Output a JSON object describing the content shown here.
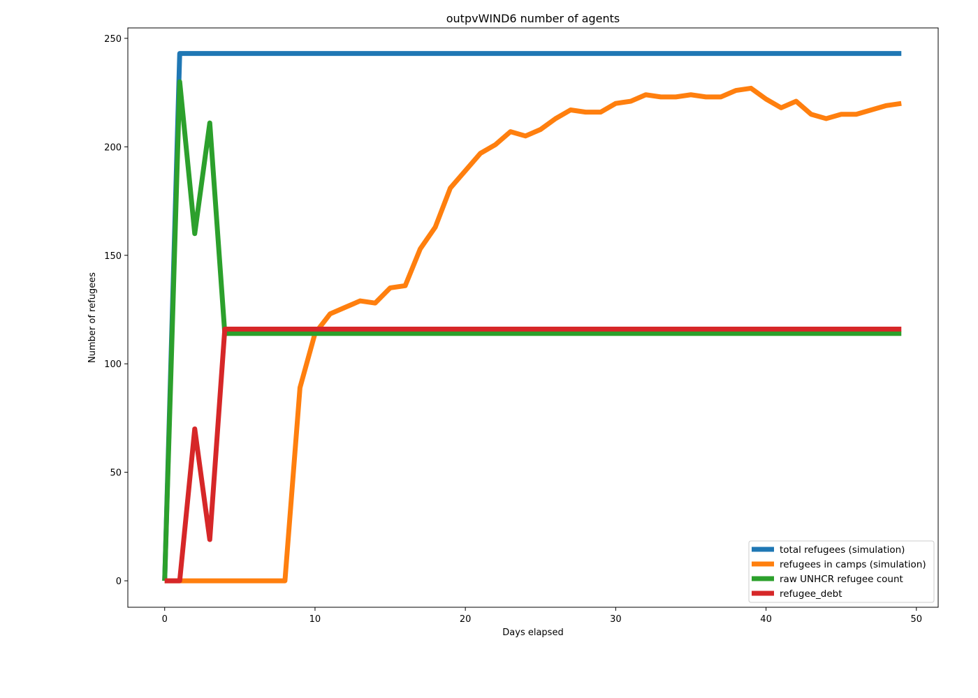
{
  "chart_data": {
    "type": "line",
    "title": "outpvWIND6 number of agents",
    "xlabel": "Days elapsed",
    "ylabel": "Number of refugees",
    "xlim": [
      -2.45,
      51.45
    ],
    "ylim": [
      -12.2,
      254.8
    ],
    "xticks": [
      0,
      10,
      20,
      30,
      40,
      50
    ],
    "yticks": [
      0,
      50,
      100,
      150,
      200,
      250
    ],
    "grid": false,
    "legend_position": "bottom-right",
    "x": [
      0,
      1,
      2,
      3,
      4,
      5,
      6,
      7,
      8,
      9,
      10,
      11,
      12,
      13,
      14,
      15,
      16,
      17,
      18,
      19,
      20,
      21,
      22,
      23,
      24,
      25,
      26,
      27,
      28,
      29,
      30,
      31,
      32,
      33,
      34,
      35,
      36,
      37,
      38,
      39,
      40,
      41,
      42,
      43,
      44,
      45,
      46,
      47,
      48,
      49
    ],
    "series": [
      {
        "name": "total refugees (simulation)",
        "color": "#1f77b4",
        "values": [
          0,
          243,
          243,
          243,
          243,
          243,
          243,
          243,
          243,
          243,
          243,
          243,
          243,
          243,
          243,
          243,
          243,
          243,
          243,
          243,
          243,
          243,
          243,
          243,
          243,
          243,
          243,
          243,
          243,
          243,
          243,
          243,
          243,
          243,
          243,
          243,
          243,
          243,
          243,
          243,
          243,
          243,
          243,
          243,
          243,
          243,
          243,
          243,
          243,
          243
        ]
      },
      {
        "name": "refugees in camps (simulation)",
        "color": "#ff7f0e",
        "values": [
          0,
          0,
          0,
          0,
          0,
          0,
          0,
          0,
          0,
          89,
          114,
          123,
          126,
          129,
          128,
          135,
          136,
          153,
          163,
          181,
          189,
          197,
          201,
          207,
          205,
          208,
          213,
          217,
          216,
          216,
          220,
          221,
          224,
          223,
          223,
          224,
          223,
          223,
          226,
          227,
          222,
          218,
          221,
          215,
          213,
          215,
          215,
          217,
          219,
          220
        ]
      },
      {
        "name": "raw UNHCR refugee count",
        "color": "#2ca02c",
        "values": [
          0,
          230,
          160,
          211,
          114,
          114,
          114,
          114,
          114,
          114,
          114,
          114,
          114,
          114,
          114,
          114,
          114,
          114,
          114,
          114,
          114,
          114,
          114,
          114,
          114,
          114,
          114,
          114,
          114,
          114,
          114,
          114,
          114,
          114,
          114,
          114,
          114,
          114,
          114,
          114,
          114,
          114,
          114,
          114,
          114,
          114,
          114,
          114,
          114,
          114
        ]
      },
      {
        "name": "refugee_debt",
        "color": "#d62728",
        "values": [
          0,
          0,
          70,
          19,
          116,
          116,
          116,
          116,
          116,
          116,
          116,
          116,
          116,
          116,
          116,
          116,
          116,
          116,
          116,
          116,
          116,
          116,
          116,
          116,
          116,
          116,
          116,
          116,
          116,
          116,
          116,
          116,
          116,
          116,
          116,
          116,
          116,
          116,
          116,
          116,
          116,
          116,
          116,
          116,
          116,
          116,
          116,
          116,
          116,
          116
        ]
      }
    ]
  }
}
